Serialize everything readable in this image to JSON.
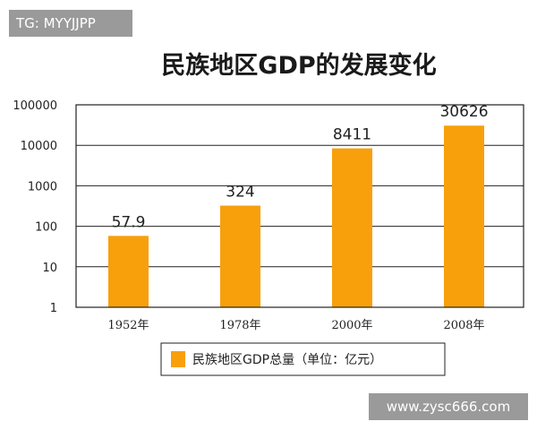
{
  "watermarks": {
    "top_left": "TG: MYYJJPP",
    "bottom_right": "www.zysc666.com"
  },
  "colors": {
    "bar": "#f7a00c",
    "grid": "#222222",
    "badge_bg": "#9a9a9a"
  },
  "chart_data": {
    "type": "bar",
    "title": "民族地区GDP的发展变化",
    "categories": [
      "1952年",
      "1978年",
      "2000年",
      "2008年"
    ],
    "series": [
      {
        "name": "民族地区GDP总量（单位：亿元）",
        "values": [
          57.9,
          324,
          8411,
          30626
        ]
      }
    ],
    "data_labels": [
      "57.9",
      "324",
      "8411",
      "30626"
    ],
    "y_scale": "log",
    "ylim": [
      1,
      100000
    ],
    "y_ticks": [
      "1",
      "10",
      "100",
      "1000",
      "10000",
      "100000"
    ],
    "grid": true,
    "legend_position": "bottom"
  }
}
